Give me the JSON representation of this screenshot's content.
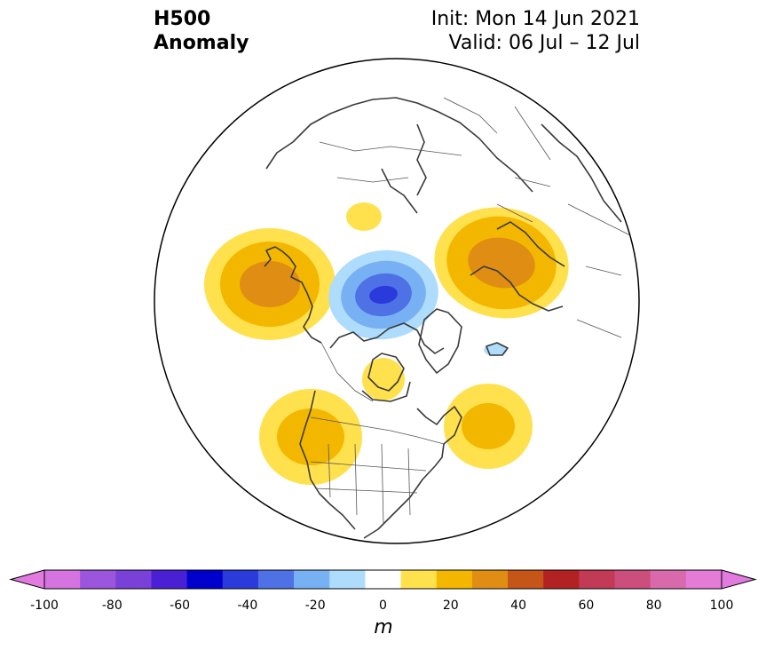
{
  "title": {
    "left_line1": "H500",
    "left_line2": "Anomaly",
    "right_line1": "Init: Mon 14 Jun 2021",
    "right_line2": "Valid: 06 Jul – 12 Jul"
  },
  "map": {
    "projection": "north-polar-stereographic",
    "boundary": "circle",
    "anomaly_centers": [
      {
        "region": "North Pacific / Alaska",
        "sign": "positive",
        "max_m": 40
      },
      {
        "region": "Arctic Ocean / Canadian Archipelago",
        "sign": "negative",
        "min_m": -50
      },
      {
        "region": "Western Russia",
        "sign": "positive",
        "max_m": 40
      },
      {
        "region": "Northwest North America",
        "sign": "positive",
        "max_m": 30
      },
      {
        "region": "Northeast North America / Labrador Sea",
        "sign": "positive",
        "max_m": 30
      },
      {
        "region": "Hudson Bay",
        "sign": "positive",
        "max_m": 20
      },
      {
        "region": "East Siberian Sea",
        "sign": "positive",
        "max_m": 20
      },
      {
        "region": "North Atlantic",
        "sign": "negative",
        "min_m": -20
      }
    ]
  },
  "colorbar": {
    "unit": "m",
    "extend": "both",
    "tick_labels": [
      "-100",
      "-80",
      "-60",
      "-40",
      "-20",
      "0",
      "20",
      "40",
      "60",
      "80",
      "100"
    ],
    "levels": [
      -100,
      -90,
      -80,
      -70,
      -60,
      -50,
      -40,
      -30,
      -20,
      -10,
      10,
      20,
      30,
      40,
      50,
      60,
      70,
      80,
      90,
      100
    ],
    "colors": [
      "#d574e0",
      "#9c56dd",
      "#7a41d8",
      "#4a20d5",
      "#0000cd",
      "#2b3bdb",
      "#4e72e6",
      "#78b0f4",
      "#aedcfc",
      "#ffffff",
      "#ffe14e",
      "#f4b700",
      "#e08d14",
      "#c65518",
      "#b22222",
      "#c23a55",
      "#cc4e7d",
      "#d86aab",
      "#e47bd6"
    ],
    "under_color": "#e27ae0",
    "over_color": "#e27ae0"
  }
}
